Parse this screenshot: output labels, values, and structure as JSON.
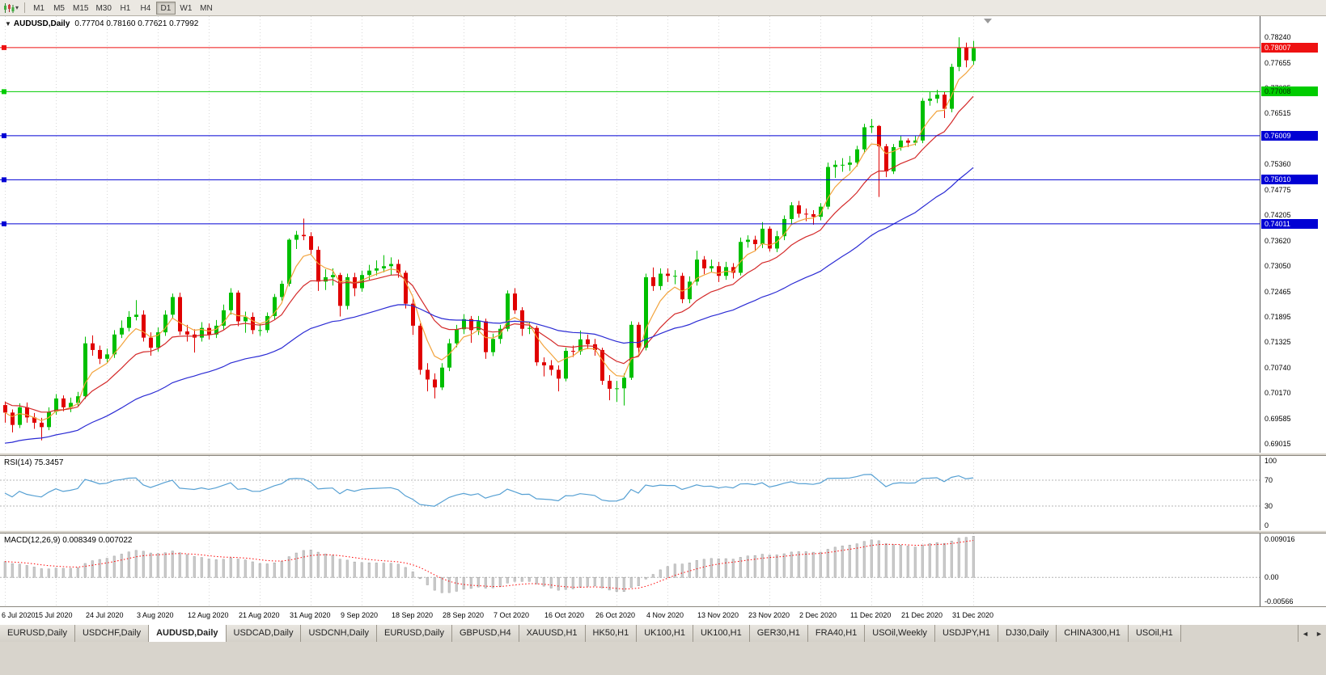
{
  "toolbar": {
    "chart_type_icon": "candlestick-chart",
    "dropdown_icon": "▾",
    "timeframes": [
      "M1",
      "M5",
      "M15",
      "M30",
      "H1",
      "H4",
      "D1",
      "W1",
      "MN"
    ],
    "active_timeframe": "D1"
  },
  "chart": {
    "title_marker_icon": "▼",
    "symbol": "AUDUSD,Daily",
    "ohlc": "0.77704 0.78160 0.77621 0.77992",
    "current_bar": {
      "open": "0.77704",
      "high": "0.78160",
      "low": "0.77621",
      "close": "0.77992"
    }
  },
  "price_axis": {
    "labels": [
      "0.78240",
      "0.77655",
      "0.77085",
      "0.76515",
      "0.75945",
      "0.75360",
      "0.74775",
      "0.74205",
      "0.73620",
      "0.73050",
      "0.72465",
      "0.71895",
      "0.71325",
      "0.70740",
      "0.70170",
      "0.69585",
      "0.69015"
    ]
  },
  "hlines": [
    {
      "price": "0.78007",
      "color": "#ee1111",
      "text_color": "#ffffff"
    },
    {
      "price": "0.77008",
      "color": "#00cc00",
      "text_color": "#003300"
    },
    {
      "price": "0.76009",
      "color": "#0000d4",
      "text_color": "#ffffff"
    },
    {
      "price": "0.75010",
      "color": "#0000d4",
      "text_color": "#ffffff"
    },
    {
      "price": "0.74011",
      "color": "#0000d4",
      "text_color": "#ffffff"
    }
  ],
  "rsi": {
    "name": "RSI(14)",
    "value": "75.3457",
    "axis_labels": [
      "100",
      "70",
      "30",
      "0"
    ],
    "levels": [
      70,
      30
    ]
  },
  "macd": {
    "name": "MACD(12,26,9)",
    "values": "0.008349 0.007022",
    "axis_labels": [
      "0.009016",
      "0.00",
      "-0.00566"
    ]
  },
  "x_axis": {
    "dates": [
      "6 Jul 2020",
      "15 Jul 2020",
      "24 Jul 2020",
      "3 Aug 2020",
      "12 Aug 2020",
      "21 Aug 2020",
      "31 Aug 2020",
      "9 Sep 2020",
      "18 Sep 2020",
      "28 Sep 2020",
      "7 Oct 2020",
      "16 Oct 2020",
      "26 Oct 2020",
      "4 Nov 2020",
      "13 Nov 2020",
      "23 Nov 2020",
      "2 Dec 2020",
      "11 Dec 2020",
      "21 Dec 2020",
      "31 Dec 2020"
    ]
  },
  "tabs": {
    "items": [
      "EURUSD,Daily",
      "USDCHF,Daily",
      "AUDUSD,Daily",
      "USDCAD,Daily",
      "USDCNH,Daily",
      "EURUSD,Daily",
      "GBPUSD,H4",
      "XAUUSD,H1",
      "HK50,H1",
      "UK100,H1",
      "UK100,H1",
      "GER30,H1",
      "FRA40,H1",
      "USOil,Weekly",
      "USDJPY,H1",
      "DJ30,Daily",
      "CHINA300,H1",
      "USOil,H1"
    ],
    "active_index": 2,
    "scroll_left_icon": "◄",
    "scroll_right_icon": "►"
  },
  "colors": {
    "up": "#00bf00",
    "down": "#e00000",
    "grid": "#d8d8d8",
    "level": "#b4b4b4",
    "ma_fast": "#f2a33c",
    "ma_medium": "#d42a2a",
    "ma_slow": "#2b2bd4",
    "rsi_line": "#56a0d3",
    "macd_hist_fill": "#cccccc",
    "macd_hist_stroke": "#8f8f8f",
    "macd_signal": "#ff0000"
  },
  "chart_data": {
    "type": "candlestick",
    "symbol": "AUDUSD",
    "timeframe": "Daily",
    "title": "AUDUSD,Daily 0.77704 0.78160 0.77621 0.77992",
    "y_range": [
      0.6882,
      0.7872
    ],
    "macd_range": [
      -0.006,
      0.0095
    ],
    "overlays": [
      {
        "name": "ema-fast",
        "period": 5,
        "color": "#f2a33c",
        "seed": null
      },
      {
        "name": "ema-medium",
        "period": 13,
        "color": "#d42a2a",
        "seed": 0.7
      },
      {
        "name": "ema-slow",
        "period": 40,
        "color": "#2b2bd4",
        "seed": 0.69
      }
    ],
    "indicators": [
      {
        "name": "RSI",
        "period": 14,
        "current": 75.3457
      },
      {
        "name": "MACD",
        "fast": 12,
        "slow": 26,
        "signal": 9,
        "current_main": 0.008349,
        "current_signal": 0.007022
      }
    ],
    "candles": [
      [
        0.699,
        0.6998,
        0.695,
        0.6973
      ],
      [
        0.6973,
        0.698,
        0.6928,
        0.6945
      ],
      [
        0.6945,
        0.6994,
        0.6938,
        0.6985
      ],
      [
        0.6985,
        0.6996,
        0.695,
        0.6962
      ],
      [
        0.6962,
        0.6972,
        0.6936,
        0.695
      ],
      [
        0.695,
        0.6961,
        0.691,
        0.694
      ],
      [
        0.694,
        0.6985,
        0.6933,
        0.6975
      ],
      [
        0.6975,
        0.7015,
        0.6968,
        0.7005
      ],
      [
        0.7005,
        0.7012,
        0.6976,
        0.6985
      ],
      [
        0.6985,
        0.7007,
        0.6974,
        0.6995
      ],
      [
        0.6995,
        0.702,
        0.6988,
        0.701
      ],
      [
        0.701,
        0.7145,
        0.7004,
        0.713
      ],
      [
        0.713,
        0.7148,
        0.7102,
        0.7115
      ],
      [
        0.7115,
        0.7125,
        0.7083,
        0.7095
      ],
      [
        0.7095,
        0.7118,
        0.7087,
        0.7105
      ],
      [
        0.7105,
        0.716,
        0.7097,
        0.715
      ],
      [
        0.715,
        0.7182,
        0.7142,
        0.7165
      ],
      [
        0.7165,
        0.7203,
        0.7157,
        0.719
      ],
      [
        0.719,
        0.7228,
        0.7182,
        0.7195
      ],
      [
        0.7195,
        0.7205,
        0.7134,
        0.7143
      ],
      [
        0.7143,
        0.7155,
        0.7102,
        0.712
      ],
      [
        0.712,
        0.7166,
        0.7111,
        0.7155
      ],
      [
        0.7155,
        0.7205,
        0.7147,
        0.7195
      ],
      [
        0.7195,
        0.7243,
        0.7187,
        0.7235
      ],
      [
        0.7235,
        0.7245,
        0.7149,
        0.7157
      ],
      [
        0.7157,
        0.7172,
        0.7134,
        0.715
      ],
      [
        0.715,
        0.7162,
        0.7109,
        0.7143
      ],
      [
        0.7143,
        0.7178,
        0.7134,
        0.7165
      ],
      [
        0.7165,
        0.7175,
        0.7139,
        0.715
      ],
      [
        0.715,
        0.7183,
        0.7142,
        0.717
      ],
      [
        0.717,
        0.7218,
        0.7161,
        0.7205
      ],
      [
        0.7205,
        0.7255,
        0.7195,
        0.7245
      ],
      [
        0.7245,
        0.725,
        0.7169,
        0.718
      ],
      [
        0.718,
        0.7202,
        0.7154,
        0.719
      ],
      [
        0.719,
        0.72,
        0.7151,
        0.716
      ],
      [
        0.716,
        0.7175,
        0.7147,
        0.716
      ],
      [
        0.716,
        0.72,
        0.7154,
        0.7192
      ],
      [
        0.7192,
        0.7242,
        0.7184,
        0.7235
      ],
      [
        0.7235,
        0.7272,
        0.7227,
        0.7265
      ],
      [
        0.7265,
        0.7368,
        0.7259,
        0.7365
      ],
      [
        0.7365,
        0.7385,
        0.7344,
        0.7376
      ],
      [
        0.7376,
        0.7413,
        0.7364,
        0.7373
      ],
      [
        0.7373,
        0.7382,
        0.7331,
        0.7342
      ],
      [
        0.7342,
        0.735,
        0.7249,
        0.727
      ],
      [
        0.727,
        0.7298,
        0.7251,
        0.728
      ],
      [
        0.728,
        0.73,
        0.7261,
        0.7285
      ],
      [
        0.7285,
        0.729,
        0.7191,
        0.7215
      ],
      [
        0.7215,
        0.7288,
        0.7207,
        0.728
      ],
      [
        0.728,
        0.729,
        0.7237,
        0.7255
      ],
      [
        0.7255,
        0.7295,
        0.7247,
        0.7285
      ],
      [
        0.7285,
        0.7308,
        0.7274,
        0.7295
      ],
      [
        0.7295,
        0.7318,
        0.7284,
        0.73
      ],
      [
        0.73,
        0.733,
        0.7291,
        0.7305
      ],
      [
        0.7305,
        0.7325,
        0.7284,
        0.731
      ],
      [
        0.731,
        0.732,
        0.7279,
        0.729
      ],
      [
        0.729,
        0.7295,
        0.7209,
        0.722
      ],
      [
        0.722,
        0.7232,
        0.7149,
        0.717
      ],
      [
        0.717,
        0.7175,
        0.7059,
        0.707
      ],
      [
        0.707,
        0.7085,
        0.7021,
        0.7048
      ],
      [
        0.7048,
        0.7062,
        0.7005,
        0.703
      ],
      [
        0.703,
        0.7085,
        0.7024,
        0.7075
      ],
      [
        0.7075,
        0.714,
        0.7067,
        0.713
      ],
      [
        0.713,
        0.7172,
        0.7121,
        0.7162
      ],
      [
        0.7162,
        0.7196,
        0.7151,
        0.7185
      ],
      [
        0.7185,
        0.7192,
        0.7131,
        0.716
      ],
      [
        0.716,
        0.7192,
        0.7149,
        0.718
      ],
      [
        0.718,
        0.7186,
        0.7095,
        0.711
      ],
      [
        0.711,
        0.7152,
        0.7101,
        0.714
      ],
      [
        0.714,
        0.7172,
        0.7129,
        0.7163
      ],
      [
        0.7163,
        0.725,
        0.7157,
        0.7243
      ],
      [
        0.7243,
        0.7255,
        0.7197,
        0.7205
      ],
      [
        0.7205,
        0.7212,
        0.7147,
        0.7163
      ],
      [
        0.7163,
        0.7178,
        0.7151,
        0.7165
      ],
      [
        0.7165,
        0.717,
        0.7079,
        0.7087
      ],
      [
        0.7087,
        0.7098,
        0.7055,
        0.708
      ],
      [
        0.708,
        0.7092,
        0.7057,
        0.707
      ],
      [
        0.707,
        0.708,
        0.7021,
        0.705
      ],
      [
        0.705,
        0.712,
        0.7044,
        0.7113
      ],
      [
        0.7113,
        0.7125,
        0.7099,
        0.7112
      ],
      [
        0.7112,
        0.7159,
        0.7104,
        0.7139
      ],
      [
        0.7139,
        0.715,
        0.7117,
        0.7128
      ],
      [
        0.7128,
        0.714,
        0.7102,
        0.7115
      ],
      [
        0.7115,
        0.712,
        0.7036,
        0.7045
      ],
      [
        0.7045,
        0.7058,
        0.7001,
        0.7027
      ],
      [
        0.7027,
        0.7045,
        0.6997,
        0.7028
      ],
      [
        0.7028,
        0.7062,
        0.6989,
        0.7052
      ],
      [
        0.7052,
        0.718,
        0.7047,
        0.7172
      ],
      [
        0.7172,
        0.7178,
        0.7107,
        0.712
      ],
      [
        0.712,
        0.7288,
        0.7114,
        0.728
      ],
      [
        0.728,
        0.7302,
        0.7249,
        0.726
      ],
      [
        0.726,
        0.73,
        0.7251,
        0.7288
      ],
      [
        0.7288,
        0.73,
        0.7269,
        0.7283
      ],
      [
        0.7283,
        0.7296,
        0.7264,
        0.7283
      ],
      [
        0.7283,
        0.729,
        0.7221,
        0.723
      ],
      [
        0.723,
        0.7282,
        0.7221,
        0.727
      ],
      [
        0.727,
        0.734,
        0.7261,
        0.732
      ],
      [
        0.732,
        0.7328,
        0.7287,
        0.73
      ],
      [
        0.73,
        0.732,
        0.7291,
        0.7305
      ],
      [
        0.7305,
        0.7315,
        0.7269,
        0.7283
      ],
      [
        0.7283,
        0.7315,
        0.7274,
        0.7303
      ],
      [
        0.7303,
        0.7312,
        0.7277,
        0.729
      ],
      [
        0.729,
        0.737,
        0.7284,
        0.736
      ],
      [
        0.736,
        0.7375,
        0.7347,
        0.7365
      ],
      [
        0.7365,
        0.7374,
        0.7339,
        0.7355
      ],
      [
        0.7355,
        0.7405,
        0.7346,
        0.739
      ],
      [
        0.739,
        0.7395,
        0.7338,
        0.7345
      ],
      [
        0.7345,
        0.7385,
        0.7337,
        0.7373
      ],
      [
        0.7373,
        0.742,
        0.7364,
        0.7412
      ],
      [
        0.7412,
        0.745,
        0.7399,
        0.7443
      ],
      [
        0.7443,
        0.7453,
        0.7415,
        0.7424
      ],
      [
        0.7424,
        0.7436,
        0.7407,
        0.7423
      ],
      [
        0.7423,
        0.7432,
        0.7399,
        0.7417
      ],
      [
        0.7417,
        0.7448,
        0.7409,
        0.744
      ],
      [
        0.744,
        0.754,
        0.7434,
        0.753
      ],
      [
        0.753,
        0.7545,
        0.7505,
        0.7535
      ],
      [
        0.7535,
        0.755,
        0.7519,
        0.7535
      ],
      [
        0.7535,
        0.7555,
        0.7521,
        0.754
      ],
      [
        0.754,
        0.7578,
        0.7531,
        0.757
      ],
      [
        0.757,
        0.7628,
        0.7561,
        0.762
      ],
      [
        0.762,
        0.7639,
        0.7607,
        0.7623
      ],
      [
        0.7623,
        0.7625,
        0.7462,
        0.7577
      ],
      [
        0.7577,
        0.7582,
        0.7507,
        0.752
      ],
      [
        0.752,
        0.7582,
        0.7514,
        0.7575
      ],
      [
        0.7575,
        0.76,
        0.7567,
        0.759
      ],
      [
        0.759,
        0.7595,
        0.7575,
        0.7585
      ],
      [
        0.7585,
        0.76,
        0.7579,
        0.759
      ],
      [
        0.759,
        0.7686,
        0.7584,
        0.768
      ],
      [
        0.768,
        0.77,
        0.7669,
        0.7685
      ],
      [
        0.7685,
        0.7705,
        0.7675,
        0.7694
      ],
      [
        0.7694,
        0.77,
        0.7641,
        0.7662
      ],
      [
        0.7662,
        0.7764,
        0.7654,
        0.7757
      ],
      [
        0.7757,
        0.7824,
        0.7747,
        0.7801
      ],
      [
        0.7801,
        0.7812,
        0.7756,
        0.7772
      ],
      [
        0.77704,
        0.7816,
        0.77621,
        0.77992
      ]
    ]
  }
}
